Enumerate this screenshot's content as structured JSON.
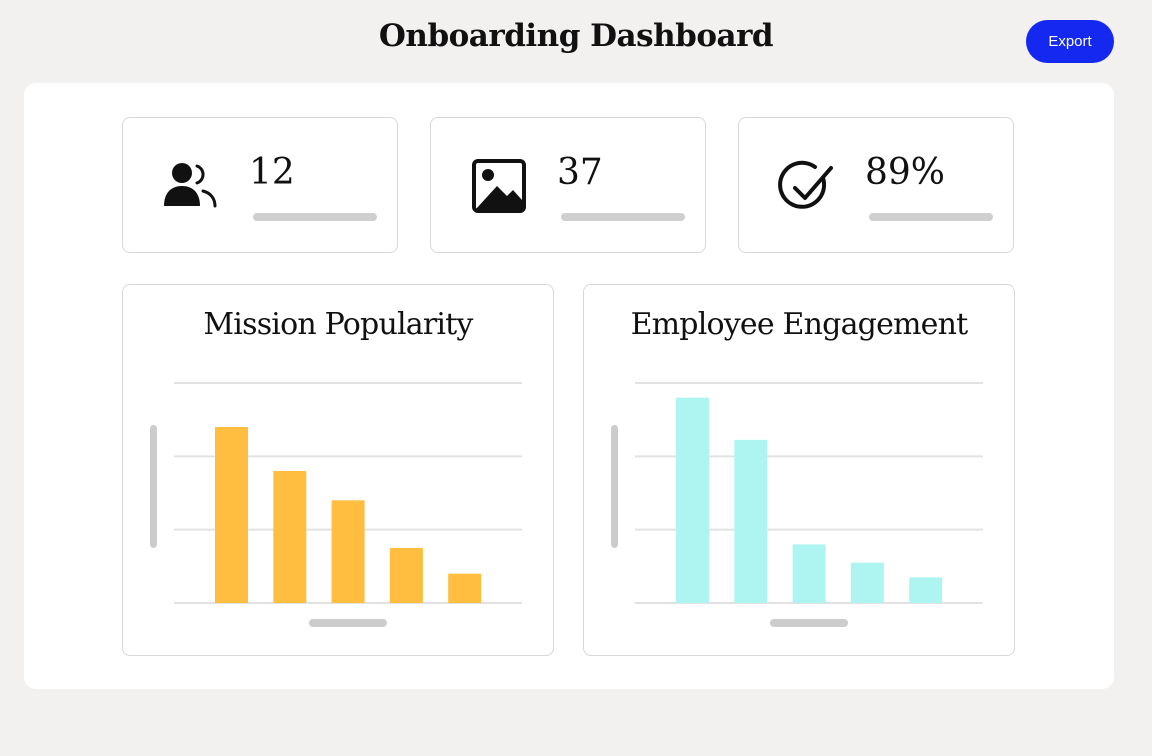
{
  "header": {
    "title": "Onboarding Dashboard",
    "export_label": "Export",
    "accent_color": "#1428f0"
  },
  "stats": [
    {
      "icon": "users-icon",
      "value": "12"
    },
    {
      "icon": "image-icon",
      "value": "37"
    },
    {
      "icon": "check-circle-icon",
      "value": "89%"
    }
  ],
  "chart_data": [
    {
      "type": "bar",
      "title": "Mission Popularity",
      "color": "#ffbe3f",
      "categories": [
        "",
        "",
        "",
        "",
        ""
      ],
      "values": [
        96,
        72,
        56,
        30,
        16
      ],
      "ylim": [
        0,
        120
      ],
      "gridlines": [
        0,
        40,
        80,
        120
      ],
      "grid": true
    },
    {
      "type": "bar",
      "title": "Employee Engagement",
      "color": "#aef4f0",
      "categories": [
        "",
        "",
        "",
        "",
        ""
      ],
      "values": [
        112,
        89,
        32,
        22,
        14
      ],
      "ylim": [
        0,
        120
      ],
      "gridlines": [
        0,
        40,
        80,
        120
      ],
      "grid": true
    }
  ]
}
